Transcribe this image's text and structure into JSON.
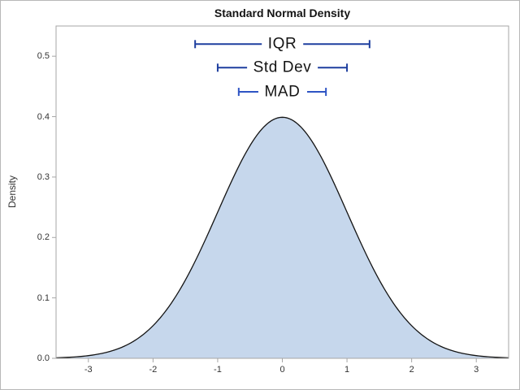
{
  "window": {
    "background": "#ffffff",
    "border_color": "#b8b8b8"
  },
  "chart_data": {
    "type": "area",
    "title": "Standard Normal Density",
    "xlabel": "",
    "ylabel": "Density",
    "xlim": [
      -3.5,
      3.5
    ],
    "ylim": [
      0,
      0.55
    ],
    "x_ticks": [
      -3,
      -2,
      -1,
      0,
      1,
      2,
      3
    ],
    "x_tick_labels": [
      "-3",
      "-2",
      "-1",
      "0",
      "1",
      "2",
      "3"
    ],
    "y_ticks": [
      0.0,
      0.1,
      0.2,
      0.3,
      0.4,
      0.5
    ],
    "y_tick_labels": [
      "0.0",
      "0.1",
      "0.2",
      "0.3",
      "0.4",
      "0.5"
    ],
    "grid": false,
    "legend": null,
    "frame_color": "#a6a6a6",
    "tick_color": "#a6a6a6",
    "label_color": "#333333",
    "curve": {
      "distribution": "normal",
      "mu": 0,
      "sigma": 1,
      "peak_density": 0.3989,
      "fill_color": "#c6d7ec",
      "line_color": "#141414"
    },
    "annotations": [
      {
        "label": "IQR",
        "x1": -1.349,
        "x2": 1.349,
        "y": 0.52,
        "color": "#1e3f9f"
      },
      {
        "label": "Std Dev",
        "x1": -1.0,
        "x2": 1.0,
        "y": 0.481,
        "color": "#1e3f9f"
      },
      {
        "label": "MAD",
        "x1": -0.6745,
        "x2": 0.6745,
        "y": 0.441,
        "color": "#2e54c4"
      }
    ]
  }
}
